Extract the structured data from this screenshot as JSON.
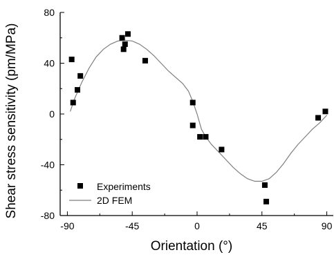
{
  "chart_data": {
    "type": "scatter",
    "title": "",
    "xlabel": "Orientation (°)",
    "ylabel": "Shear stress sensitivity (pm/MPa)",
    "xlim": [
      -95,
      95
    ],
    "ylim": [
      -80,
      80
    ],
    "xticks": [
      -90,
      -45,
      0,
      45,
      90
    ],
    "yticks": [
      80,
      40,
      0,
      -40,
      -80
    ],
    "grid": false,
    "legend_position": "bottom-left",
    "series": [
      {
        "name": "Experiments",
        "kind": "scatter",
        "marker": "square",
        "color": "#000000",
        "points": [
          [
            -87,
            43
          ],
          [
            -86,
            9
          ],
          [
            -83,
            19
          ],
          [
            -81,
            30
          ],
          [
            -52,
            60
          ],
          [
            -51,
            51
          ],
          [
            -50,
            55
          ],
          [
            -48,
            63
          ],
          [
            -36,
            42
          ],
          [
            -3,
            9
          ],
          [
            -3,
            -9
          ],
          [
            2,
            -18
          ],
          [
            6,
            -18
          ],
          [
            17,
            -28
          ],
          [
            47,
            -56
          ],
          [
            48,
            -69
          ],
          [
            84,
            -3
          ],
          [
            89,
            2
          ]
        ]
      },
      {
        "name": "2D FEM",
        "kind": "line",
        "color": "#7f7f7f",
        "points": [
          [
            -88,
            2
          ],
          [
            -85,
            12
          ],
          [
            -80,
            25
          ],
          [
            -75,
            36
          ],
          [
            -70,
            45
          ],
          [
            -65,
            51
          ],
          [
            -60,
            55
          ],
          [
            -55,
            57.5
          ],
          [
            -50,
            58
          ],
          [
            -45,
            57.5
          ],
          [
            -40,
            55
          ],
          [
            -35,
            51
          ],
          [
            -30,
            46
          ],
          [
            -25,
            40
          ],
          [
            -20,
            34
          ],
          [
            -15,
            29
          ],
          [
            -10,
            24
          ],
          [
            -6,
            18
          ],
          [
            -3,
            10
          ],
          [
            0,
            0
          ],
          [
            3,
            -12
          ],
          [
            6,
            -18
          ],
          [
            10,
            -24
          ],
          [
            15,
            -30
          ],
          [
            20,
            -36
          ],
          [
            25,
            -42
          ],
          [
            30,
            -47
          ],
          [
            35,
            -51
          ],
          [
            40,
            -53
          ],
          [
            45,
            -53
          ],
          [
            50,
            -51
          ],
          [
            55,
            -46
          ],
          [
            60,
            -39
          ],
          [
            65,
            -31
          ],
          [
            70,
            -24
          ],
          [
            75,
            -18
          ],
          [
            80,
            -12
          ],
          [
            85,
            -7
          ],
          [
            90,
            -1
          ]
        ]
      }
    ]
  }
}
